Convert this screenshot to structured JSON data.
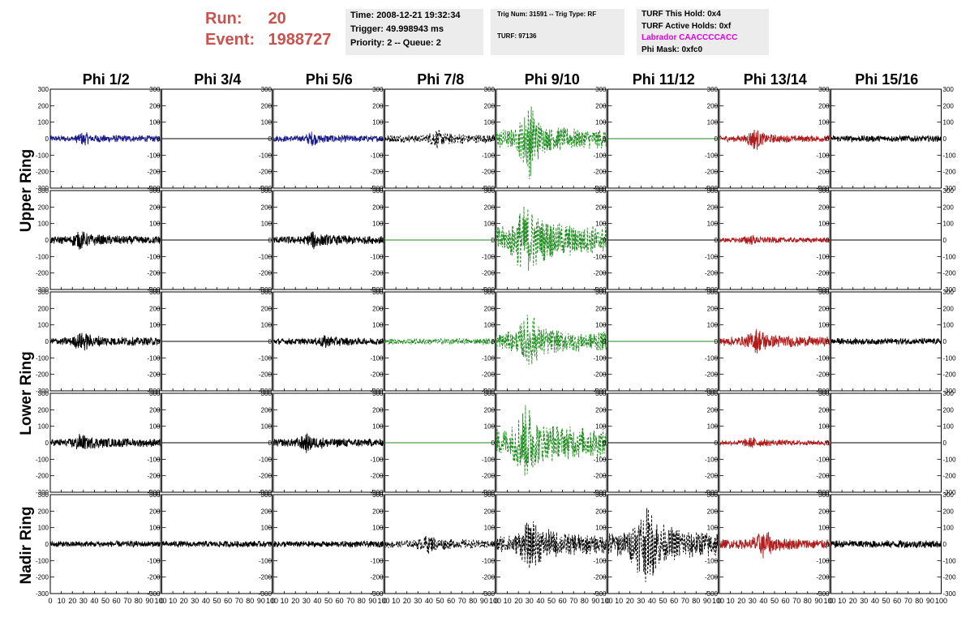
{
  "header": {
    "run_label": "Run:",
    "run_value": "20",
    "event_label": "Event:",
    "event_value": "1988727",
    "time": "Time: 2008-12-21 19:32:34",
    "trigger": "Trigger: 49.998943 ms",
    "priority": "Priority: 2 -- Queue: 2",
    "trig_num": "Trig Num: 31591 -- Trig Type: RF",
    "turf": "TURF: 97136",
    "turf_this_hold": "TURF This Hold: 0x4",
    "turf_active_holds": "TURF Active Holds: 0xf",
    "labrador": "Labrador CAACCCCACC",
    "phi_mask": "Phi Mask: 0xfc0"
  },
  "colors": {
    "header_red": "#c8524e",
    "magenta": "#e000e0",
    "blue": "#1a1a8c",
    "green": "#1f8a1f",
    "red": "#b01c1c",
    "black": "#000000"
  },
  "chart_data": {
    "type": "line",
    "columns": [
      "Phi 1/2",
      "Phi 3/4",
      "Phi 5/6",
      "Phi 7/8",
      "Phi 9/10",
      "Phi 11/12",
      "Phi 13/14",
      "Phi 15/16"
    ],
    "row_groups": [
      {
        "label": "Upper Ring",
        "rows": [
          0,
          1
        ]
      },
      {
        "label": "Lower Ring",
        "rows": [
          2,
          3
        ]
      },
      {
        "label": "Nadir Ring",
        "rows": [
          4
        ]
      }
    ],
    "xlim": [
      0,
      100
    ],
    "ylim": [
      -300,
      300
    ],
    "x_ticks": [
      0,
      10,
      20,
      30,
      40,
      50,
      60,
      70,
      80,
      90,
      100
    ],
    "y_ticks": [
      -300,
      -200,
      -100,
      0,
      100,
      200,
      300
    ],
    "panels": [
      [
        {
          "color": "blue",
          "amp": 20,
          "burst": [
            25,
            35
          ],
          "dashed": false
        },
        {
          "color": "black",
          "amp": 0,
          "burst": null,
          "dashed": false
        },
        {
          "color": "blue",
          "amp": 20,
          "burst": [
            30,
            40
          ],
          "dashed": false
        },
        {
          "color": "black",
          "amp": 25,
          "burst": [
            40,
            55
          ],
          "dashed": true
        },
        {
          "color": "green",
          "amp": 60,
          "burst": [
            20,
            40
          ],
          "peak": 250,
          "dashed": true
        },
        {
          "color": "green",
          "amp": 0,
          "burst": null,
          "dashed": false
        },
        {
          "color": "red",
          "amp": 20,
          "burst": [
            25,
            40
          ],
          "peak": 80,
          "dashed": false
        },
        {
          "color": "black",
          "amp": 20,
          "burst": null,
          "dashed": false
        }
      ],
      [
        {
          "color": "black",
          "amp": 25,
          "burst": [
            20,
            35
          ],
          "dashed": false
        },
        {
          "color": "black",
          "amp": 0,
          "burst": null,
          "dashed": false
        },
        {
          "color": "black",
          "amp": 25,
          "burst": [
            30,
            45
          ],
          "dashed": false
        },
        {
          "color": "green",
          "amp": 0,
          "burst": null,
          "dashed": false
        },
        {
          "color": "green",
          "amp": 90,
          "burst": [
            15,
            40
          ],
          "peak": 260,
          "dashed": true
        },
        {
          "color": "black",
          "amp": 0,
          "burst": null,
          "dashed": false
        },
        {
          "color": "red",
          "amp": 15,
          "burst": [
            20,
            35
          ],
          "dashed": false
        },
        {
          "color": "black",
          "amp": 0,
          "burst": null,
          "dashed": false
        }
      ],
      [
        {
          "color": "black",
          "amp": 25,
          "burst": [
            20,
            40
          ],
          "dashed": false
        },
        {
          "color": "black",
          "amp": 0,
          "burst": null,
          "dashed": false
        },
        {
          "color": "black",
          "amp": 20,
          "burst": [
            40,
            55
          ],
          "dashed": false
        },
        {
          "color": "green",
          "amp": 20,
          "burst": null,
          "dashed": true
        },
        {
          "color": "green",
          "amp": 60,
          "burst": [
            20,
            40
          ],
          "peak": 200,
          "dashed": true
        },
        {
          "color": "green",
          "amp": 0,
          "burst": null,
          "dashed": false
        },
        {
          "color": "red",
          "amp": 30,
          "burst": [
            25,
            45
          ],
          "peak": 90,
          "dashed": false
        },
        {
          "color": "black",
          "amp": 20,
          "burst": null,
          "dashed": false
        }
      ],
      [
        {
          "color": "black",
          "amp": 25,
          "burst": [
            20,
            35
          ],
          "peak": 60,
          "dashed": false
        },
        {
          "color": "black",
          "amp": 0,
          "burst": null,
          "dashed": false
        },
        {
          "color": "black",
          "amp": 25,
          "burst": [
            20,
            40
          ],
          "dashed": false
        },
        {
          "color": "green",
          "amp": 0,
          "burst": null,
          "dashed": false
        },
        {
          "color": "green",
          "amp": 90,
          "burst": [
            15,
            40
          ],
          "peak": 250,
          "dashed": true
        },
        {
          "color": "black",
          "amp": 0,
          "burst": null,
          "dashed": false
        },
        {
          "color": "red",
          "amp": 15,
          "burst": [
            20,
            40
          ],
          "dashed": false
        },
        {
          "color": "black",
          "amp": 0,
          "burst": null,
          "dashed": false
        }
      ],
      [
        {
          "color": "black",
          "amp": 20,
          "burst": null,
          "dashed": false
        },
        {
          "color": "black",
          "amp": 20,
          "burst": null,
          "dashed": false
        },
        {
          "color": "black",
          "amp": 20,
          "burst": null,
          "dashed": false
        },
        {
          "color": "black",
          "amp": 25,
          "burst": [
            30,
            50
          ],
          "dashed": true
        },
        {
          "color": "black",
          "amp": 60,
          "burst": [
            20,
            45
          ],
          "peak": 170,
          "dashed": true
        },
        {
          "color": "black",
          "amp": 80,
          "burst": [
            20,
            50
          ],
          "peak": 250,
          "dashed": true
        },
        {
          "color": "red",
          "amp": 30,
          "burst": [
            30,
            50
          ],
          "peak": 100,
          "dashed": false
        },
        {
          "color": "black",
          "amp": 25,
          "burst": null,
          "dashed": false
        }
      ]
    ]
  }
}
